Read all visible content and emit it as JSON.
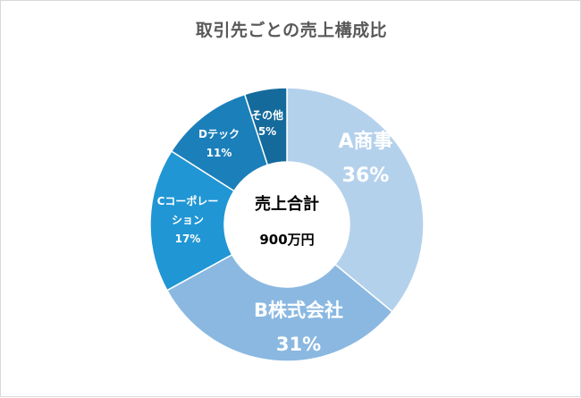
{
  "chart_data": {
    "type": "pie",
    "variant": "donut",
    "title": "取引先ごとの売上構成比",
    "categories": [
      "A商事",
      "B株式会社",
      "Cコーポレーション",
      "Dテック",
      "その他"
    ],
    "values": [
      36,
      31,
      17,
      11,
      5
    ],
    "value_suffix": "%",
    "colors": [
      "#b4d1ec",
      "#8ab8e1",
      "#2196d4",
      "#1b7fba",
      "#156a9c"
    ],
    "center_label": {
      "line1": "売上合計",
      "line2": "900万円"
    },
    "label_lines": [
      [
        "A商事",
        "36%"
      ],
      [
        "B株式会社",
        "31%"
      ],
      [
        "Cコーポレー",
        "ション",
        "17%"
      ],
      [
        "Dテック",
        "11%"
      ],
      [
        "その他",
        "5%"
      ]
    ],
    "legend": "none"
  }
}
